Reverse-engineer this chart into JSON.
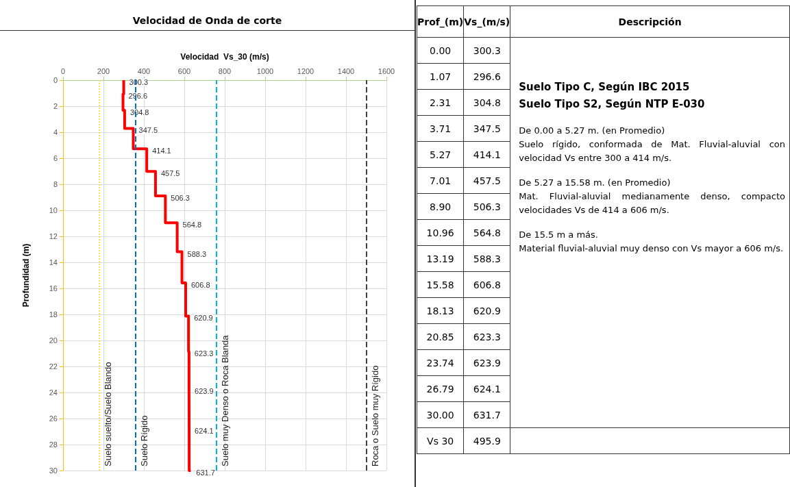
{
  "chart_data": [
    {
      "type": "step",
      "orientation": "horizontal",
      "title": "Velocidad de Onda de corte",
      "xlabel": "Velocidad  Vs_30 (m/s)",
      "ylabel": "Profundidad (m)",
      "x": [
        0,
        1.07,
        2.31,
        3.71,
        5.27,
        7.01,
        8.9,
        10.96,
        13.19,
        15.58,
        18.13,
        20.85,
        23.74,
        26.79,
        30.0
      ],
      "values": [
        300.3,
        296.6,
        304.8,
        347.5,
        414.1,
        457.5,
        506.3,
        564.8,
        588.3,
        606.8,
        620.9,
        623.3,
        623.9,
        624.1,
        631.7
      ],
      "color": "#ff0000",
      "data_labels": true,
      "marker": "none",
      "line_style": "solid",
      "grid": true,
      "xlim": [
        0,
        1600
      ],
      "xticks": [
        0,
        200,
        400,
        600,
        800,
        1000,
        1200,
        1400,
        1600
      ],
      "ylim": [
        30,
        0
      ],
      "yticks": [
        0,
        2,
        4,
        6,
        8,
        10,
        12,
        14,
        16,
        18,
        20,
        22,
        24,
        26,
        28,
        30
      ],
      "ref_lines": [
        {
          "axis": "x",
          "value": 180,
          "label": "Suelo suelto/Suelo Blando",
          "color": "#ffe14d",
          "line_style": "dotted"
        },
        {
          "axis": "x",
          "value": 360,
          "label": "Suelo Rígido",
          "color": "#0070c0",
          "line_style": "dashed"
        },
        {
          "axis": "x",
          "value": 760,
          "label": "Suelo muy Denso o Roca Blanda",
          "color": "#00b0f0",
          "line_style": "dashed"
        },
        {
          "axis": "x",
          "value": 1500,
          "label": "Roca o Suelo muy Rígido",
          "color": "#404040",
          "line_style": "dashed"
        }
      ]
    },
    {
      "type": "other",
      "cells": [
        [
          "Prof_(m)",
          "Vs_(m/s)",
          "Descripción"
        ],
        [
          "0.00",
          "300.3"
        ],
        [
          "1.07",
          "296.6"
        ],
        [
          "2.31",
          "304.8"
        ],
        [
          "3.71",
          "347.5"
        ],
        [
          "5.27",
          "414.1"
        ],
        [
          "7.01",
          "457.5"
        ],
        [
          "8.90",
          "506.3"
        ],
        [
          "10.96",
          "564.8"
        ],
        [
          "13.19",
          "588.3"
        ],
        [
          "15.58",
          "606.8"
        ],
        [
          "18.13",
          "620.9"
        ],
        [
          "20.85",
          "623.3"
        ],
        [
          "23.74",
          "623.9"
        ],
        [
          "26.79",
          "624.1"
        ],
        [
          "30.00",
          "631.7"
        ],
        [
          "Vs 30",
          "495.9",
          null
        ]
      ],
      "annotations": [
        "Suelo Tipo C, Según IBC 2015",
        "Suelo Tipo S2, Según NTP E-030",
        "De 0.00 a 5.27 m. (en Promedio)",
        "Suelo rígido, conformada de Mat. Fluvial-aluvial con velocidad Vs entre 300 a 414 m/s.",
        "De 5.27 a 15.58 m. (en Promedio)",
        "Mat. Fluvial-aluvial medianamente denso, compacto velocidades Vs de 414 a 606 m/s.",
        "De 15.5 m a más.",
        "Material fluvial-aluvial muy denso con Vs mayor a 606 m/s."
      ]
    }
  ]
}
